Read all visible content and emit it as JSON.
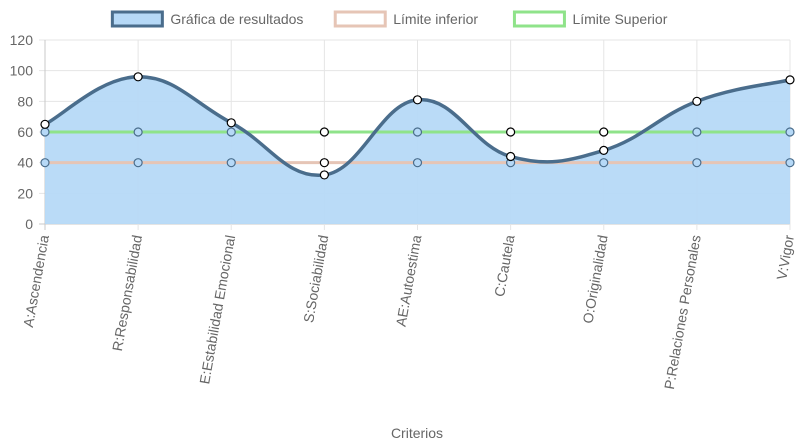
{
  "chart_data": {
    "type": "line",
    "categories": [
      "A:Ascendencia",
      "R:Responsabilidad",
      "E:Estabilidad Emocional",
      "S:Sociabilidad",
      "AE:Autoestima",
      "C:Cautela",
      "O:Originalidad",
      "P:Relaciones Personales",
      "V:Vigor"
    ],
    "series": [
      {
        "name": "Gráfica de resultados",
        "values": [
          65,
          96,
          66,
          32,
          81,
          44,
          48,
          80,
          94
        ],
        "color": "#4a6d8c",
        "fill": "#b6d9f7",
        "filled": true,
        "smooth": true
      },
      {
        "name": "Límite inferior",
        "values": [
          40,
          40,
          40,
          40,
          40,
          40,
          40,
          40,
          40
        ],
        "color": "#e6c5b6",
        "filled": false,
        "smooth": false
      },
      {
        "name": "Límite Superior",
        "values": [
          60,
          60,
          60,
          60,
          60,
          60,
          60,
          60,
          60
        ],
        "color": "#8fe38a",
        "filled": false,
        "smooth": false
      }
    ],
    "xlabel": "Criterios",
    "ylabel": "",
    "ylim": [
      0,
      120
    ],
    "yticks": [
      0,
      20,
      40,
      60,
      80,
      100,
      120
    ],
    "grid": true,
    "legend": "top-center"
  }
}
